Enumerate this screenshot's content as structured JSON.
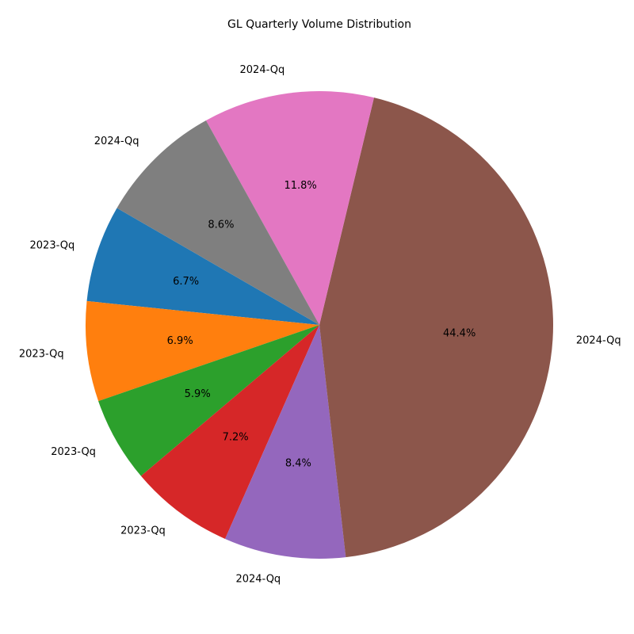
{
  "chart_data": {
    "type": "pie",
    "title": "GL Quarterly Volume Distribution",
    "start_angle_deg": 150,
    "direction": "counterclockwise",
    "slices": [
      {
        "label": "2023-Qq",
        "percent": 6.7,
        "pct_label": "6.7%",
        "color": "#1f77b4"
      },
      {
        "label": "2023-Qq",
        "percent": 6.9,
        "pct_label": "6.9%",
        "color": "#ff7f0e"
      },
      {
        "label": "2023-Qq",
        "percent": 5.9,
        "pct_label": "5.9%",
        "color": "#2ca02c"
      },
      {
        "label": "2023-Qq",
        "percent": 7.2,
        "pct_label": "7.2%",
        "color": "#d62728"
      },
      {
        "label": "2024-Qq",
        "percent": 8.4,
        "pct_label": "8.4%",
        "color": "#9467bd"
      },
      {
        "label": "2024-Qq",
        "percent": 44.4,
        "pct_label": "44.4%",
        "color": "#8c564b"
      },
      {
        "label": "2024-Qq",
        "percent": 11.8,
        "pct_label": "11.8%",
        "color": "#e377c2"
      },
      {
        "label": "2024-Qq",
        "percent": 8.6,
        "pct_label": "8.6%",
        "color": "#7f7f7f"
      }
    ]
  }
}
